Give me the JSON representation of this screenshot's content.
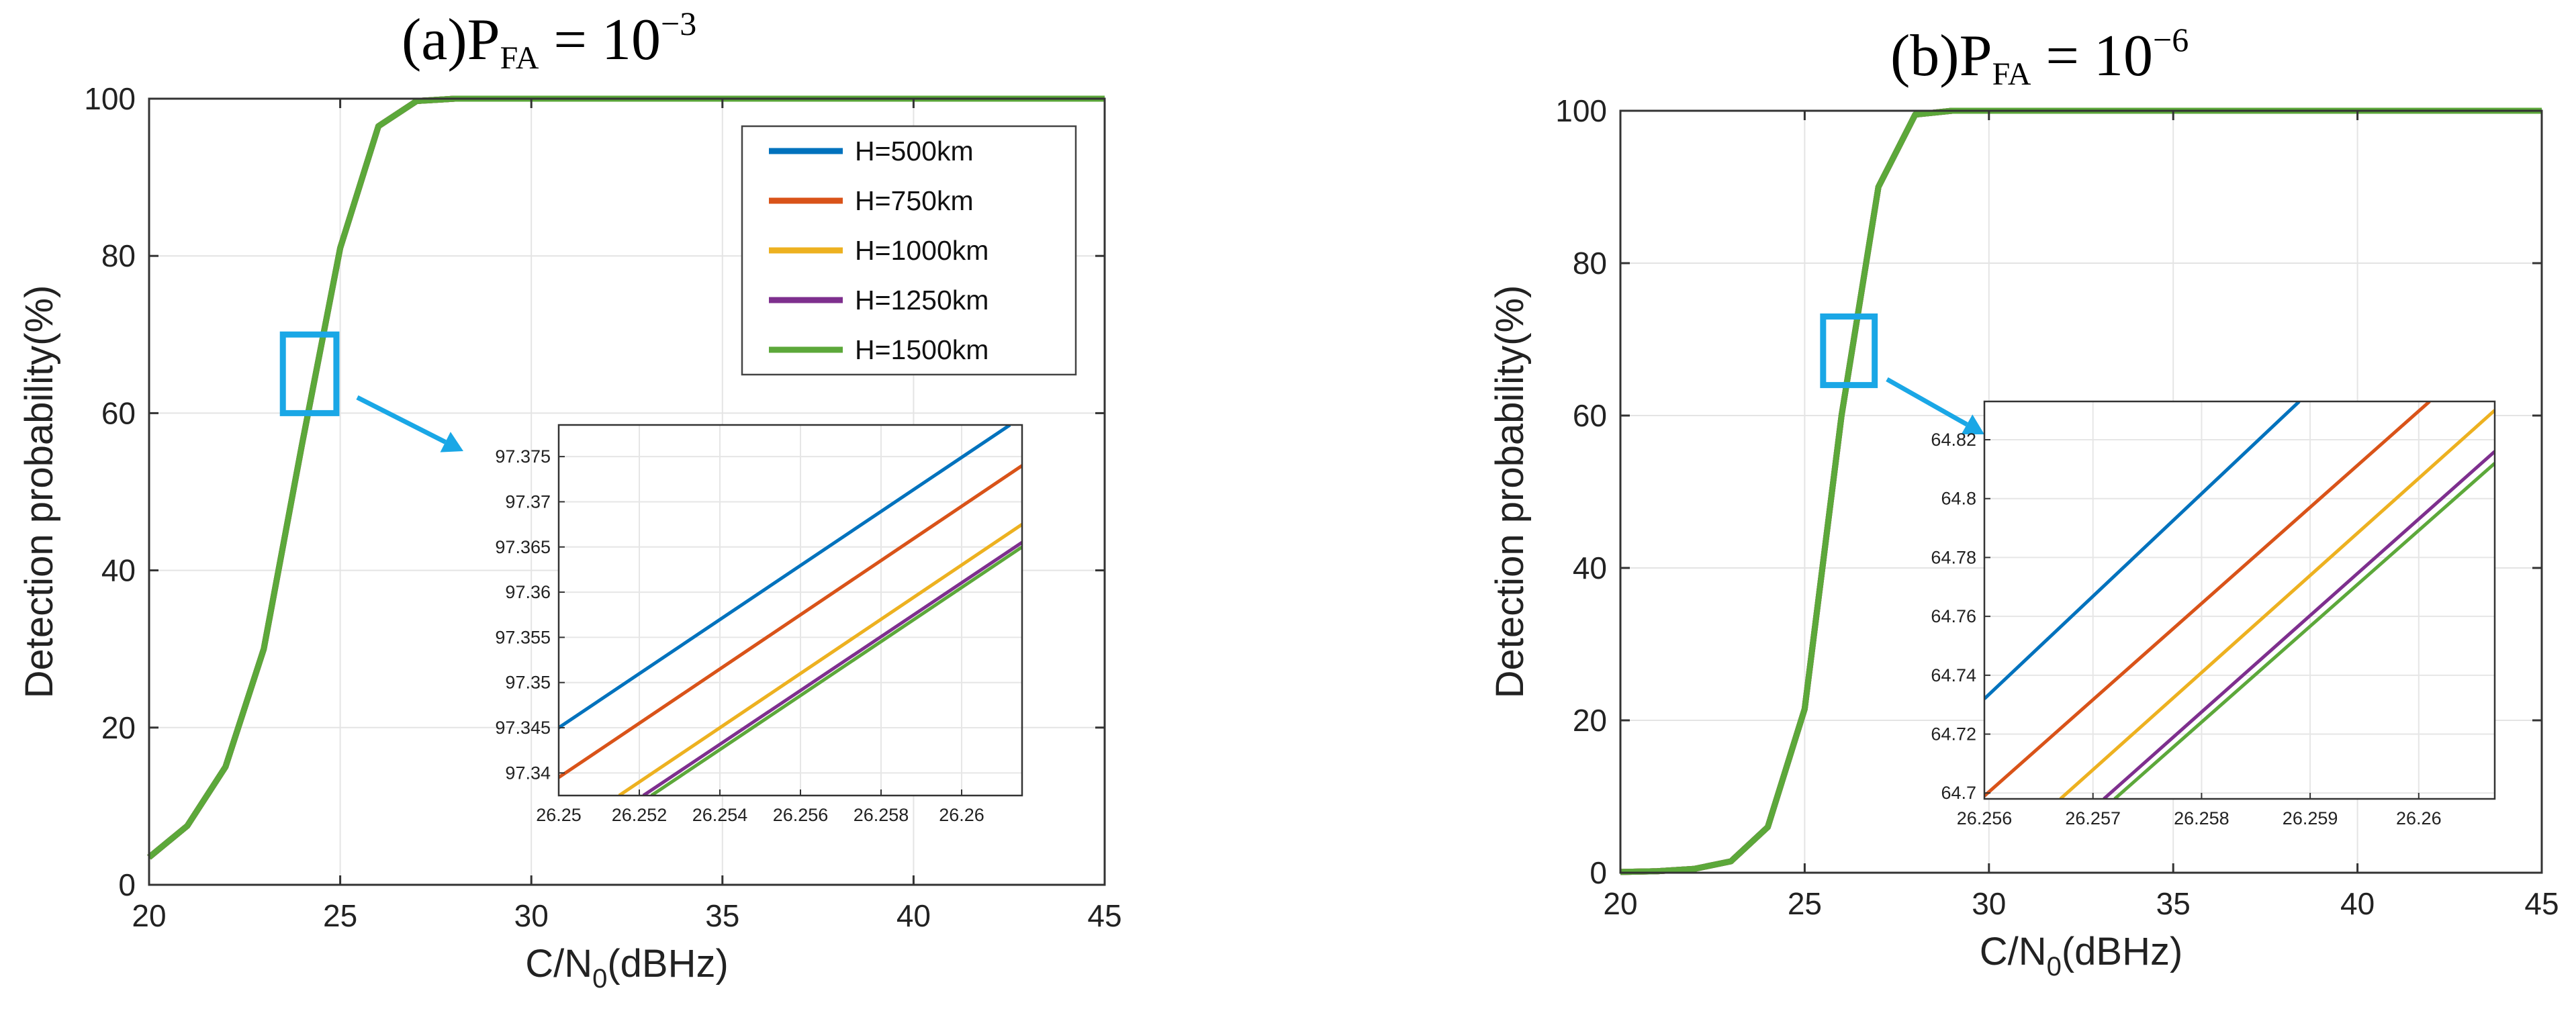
{
  "chart_data": [
    {
      "id": "a",
      "type": "line",
      "title": {
        "prefix": "(a)P",
        "sub": "FA",
        "mid": " = 10",
        "sup": "−3"
      },
      "xlabel": {
        "main": "C/N",
        "sub": "0",
        "tail": "(dBHz)"
      },
      "ylabel": "Detection probability(%)",
      "xlim": [
        20,
        45
      ],
      "ylim": [
        0,
        100
      ],
      "xticks": [
        20,
        25,
        30,
        35,
        40,
        45
      ],
      "yticks": [
        0,
        20,
        40,
        60,
        80,
        100
      ],
      "grid": true,
      "legend_position": "top-right",
      "series": [
        {
          "name": "H=500km",
          "color": "#0072BD",
          "x": [
            20,
            21,
            22,
            23,
            24,
            25,
            26,
            27,
            28,
            29,
            30,
            35,
            40,
            45
          ],
          "y": [
            3.5,
            7.5,
            15,
            30,
            56,
            81,
            96.5,
            99.7,
            100,
            100,
            100,
            100,
            100,
            100
          ]
        },
        {
          "name": "H=750km",
          "color": "#D95319",
          "x": [
            20,
            21,
            22,
            23,
            24,
            25,
            26,
            27,
            28,
            29,
            30,
            35,
            40,
            45
          ],
          "y": [
            3.5,
            7.5,
            15,
            30,
            56,
            81,
            96.5,
            99.7,
            100,
            100,
            100,
            100,
            100,
            100
          ]
        },
        {
          "name": "H=1000km",
          "color": "#EDB120",
          "x": [
            20,
            21,
            22,
            23,
            24,
            25,
            26,
            27,
            28,
            29,
            30,
            35,
            40,
            45
          ],
          "y": [
            3.5,
            7.5,
            15,
            30,
            56,
            81,
            96.5,
            99.7,
            100,
            100,
            100,
            100,
            100,
            100
          ]
        },
        {
          "name": "H=1250km",
          "color": "#7E2F8E",
          "x": [
            20,
            21,
            22,
            23,
            24,
            25,
            26,
            27,
            28,
            29,
            30,
            35,
            40,
            45
          ],
          "y": [
            3.5,
            7.5,
            15,
            30,
            56,
            81,
            96.5,
            99.7,
            100,
            100,
            100,
            100,
            100,
            100
          ]
        },
        {
          "name": "H=1500km",
          "color": "#5CA83A",
          "x": [
            20,
            21,
            22,
            23,
            24,
            25,
            26,
            27,
            28,
            29,
            30,
            35,
            40,
            45
          ],
          "y": [
            3.5,
            7.5,
            15,
            30,
            56,
            81,
            96.5,
            99.7,
            100,
            100,
            100,
            100,
            100,
            100
          ]
        }
      ],
      "zoom_region": {
        "x": [
          23.5,
          24.9
        ],
        "y": [
          60,
          70
        ]
      },
      "inset": {
        "xlim": [
          26.25,
          26.2615
        ],
        "ylim": [
          97.3375,
          97.3785
        ],
        "xticks": [
          "26.25",
          "26.252",
          "26.254",
          "26.256",
          "26.258",
          "26.26"
        ],
        "yticks": [
          "97.34",
          "97.345",
          "97.35",
          "97.355",
          "97.36",
          "97.365",
          "97.37",
          "97.375"
        ],
        "series": [
          {
            "color": "#0072BD",
            "x": [
              26.25,
              26.2612
            ],
            "y": [
              97.345,
              97.3785
            ]
          },
          {
            "color": "#D95319",
            "x": [
              26.25,
              26.2615
            ],
            "y": [
              97.3395,
              97.374
            ]
          },
          {
            "color": "#EDB120",
            "x": [
              26.2515,
              26.2615
            ],
            "y": [
              97.3375,
              97.3675
            ]
          },
          {
            "color": "#7E2F8E",
            "x": [
              26.2521,
              26.2615
            ],
            "y": [
              97.3375,
              97.3655
            ]
          },
          {
            "color": "#5CA83A",
            "x": [
              26.2523,
              26.2615
            ],
            "y": [
              97.3375,
              97.365
            ]
          }
        ]
      }
    },
    {
      "id": "b",
      "type": "line",
      "title": {
        "prefix": "(b)P",
        "sub": "FA",
        "mid": " = 10",
        "sup": "−6"
      },
      "xlabel": {
        "main": "C/N",
        "sub": "0",
        "tail": "(dBHz)"
      },
      "ylabel": "Detection probability(%)",
      "xlim": [
        20,
        45
      ],
      "ylim": [
        0,
        100
      ],
      "xticks": [
        20,
        25,
        30,
        35,
        40,
        45
      ],
      "yticks": [
        0,
        20,
        40,
        60,
        80,
        100
      ],
      "grid": true,
      "series": [
        {
          "name": "H=500km",
          "color": "#0072BD",
          "x": [
            20,
            21,
            22,
            23,
            24,
            25,
            26,
            27,
            28,
            29,
            30,
            35,
            40,
            45
          ],
          "y": [
            0.1,
            0.2,
            0.5,
            1.5,
            6,
            21.5,
            60,
            90,
            99.5,
            100,
            100,
            100,
            100,
            100
          ]
        },
        {
          "name": "H=750km",
          "color": "#D95319",
          "x": [
            20,
            21,
            22,
            23,
            24,
            25,
            26,
            27,
            28,
            29,
            30,
            35,
            40,
            45
          ],
          "y": [
            0.1,
            0.2,
            0.5,
            1.5,
            6,
            21.5,
            60,
            90,
            99.5,
            100,
            100,
            100,
            100,
            100
          ]
        },
        {
          "name": "H=1000km",
          "color": "#EDB120",
          "x": [
            20,
            21,
            22,
            23,
            24,
            25,
            26,
            27,
            28,
            29,
            30,
            35,
            40,
            45
          ],
          "y": [
            0.1,
            0.2,
            0.5,
            1.5,
            6,
            21.5,
            60,
            90,
            99.5,
            100,
            100,
            100,
            100,
            100
          ]
        },
        {
          "name": "H=1250km",
          "color": "#7E2F8E",
          "x": [
            20,
            21,
            22,
            23,
            24,
            25,
            26,
            27,
            28,
            29,
            30,
            35,
            40,
            45
          ],
          "y": [
            0.1,
            0.2,
            0.5,
            1.5,
            6,
            21.5,
            60,
            90,
            99.5,
            100,
            100,
            100,
            100,
            100
          ]
        },
        {
          "name": "H=1500km",
          "color": "#5CA83A",
          "x": [
            20,
            21,
            22,
            23,
            24,
            25,
            26,
            27,
            28,
            29,
            30,
            35,
            40,
            45
          ],
          "y": [
            0.1,
            0.2,
            0.5,
            1.5,
            6,
            21.5,
            60,
            90,
            99.5,
            100,
            100,
            100,
            100,
            100
          ]
        }
      ],
      "zoom_region": {
        "x": [
          25.5,
          26.9
        ],
        "y": [
          64,
          73
        ]
      },
      "inset": {
        "xlim": [
          26.256,
          26.2607
        ],
        "ylim": [
          64.698,
          64.833
        ],
        "xticks": [
          "26.256",
          "26.257",
          "26.258",
          "26.259",
          "26.26"
        ],
        "yticks": [
          "64.7",
          "64.72",
          "64.74",
          "64.76",
          "64.78",
          "64.8",
          "64.82"
        ],
        "series": [
          {
            "color": "#0072BD",
            "x": [
              26.256,
              26.2589
            ],
            "y": [
              64.732,
              64.833
            ]
          },
          {
            "color": "#D95319",
            "x": [
              26.256,
              26.2601
            ],
            "y": [
              64.699,
              64.833
            ]
          },
          {
            "color": "#EDB120",
            "x": [
              26.2567,
              26.2607
            ],
            "y": [
              64.698,
              64.83
            ]
          },
          {
            "color": "#7E2F8E",
            "x": [
              26.2571,
              26.2607
            ],
            "y": [
              64.698,
              64.816
            ]
          },
          {
            "color": "#5CA83A",
            "x": [
              26.2572,
              26.2607
            ],
            "y": [
              64.698,
              64.812
            ]
          }
        ]
      }
    }
  ]
}
